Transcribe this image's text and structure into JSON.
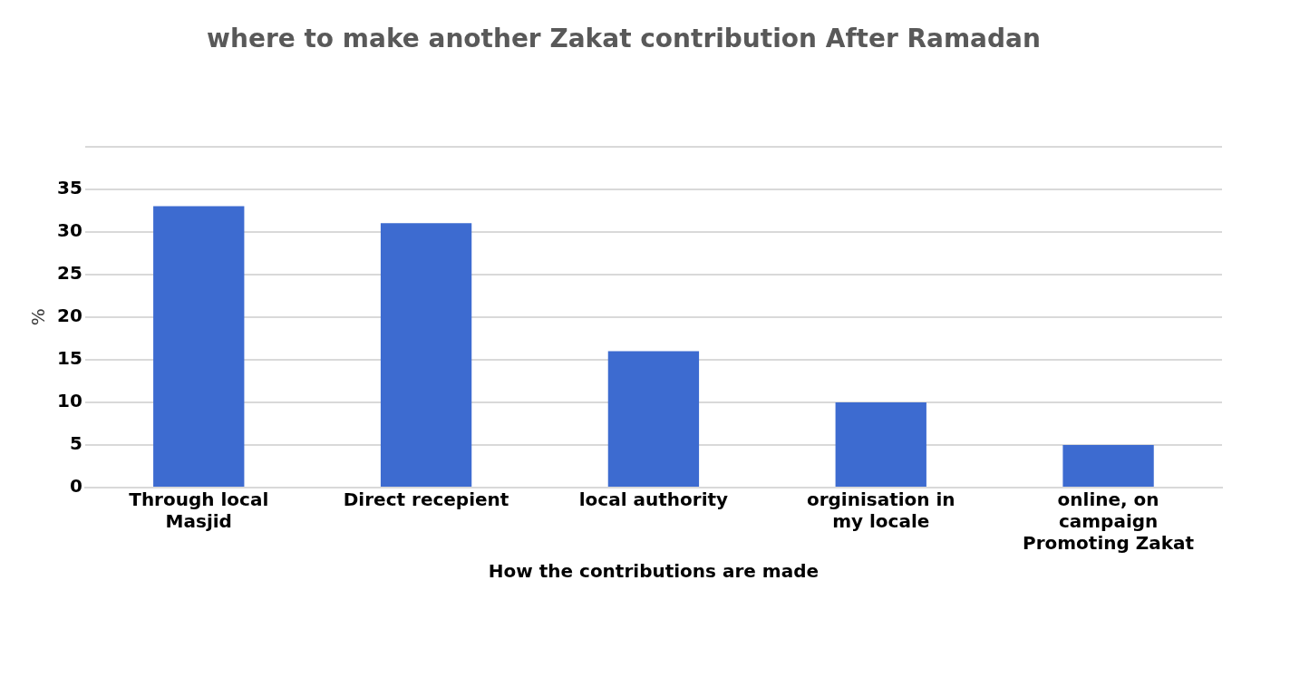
{
  "chart_data": {
    "type": "bar",
    "title": "where to make another Zakat contribution After Ramadan",
    "xlabel": "How the contributions are made",
    "ylabel": "%",
    "categories": [
      "Through local Masjid",
      "Direct recepient",
      "local authority",
      "orginisation in my locale",
      "online, on campaign Promoting Zakat"
    ],
    "values": [
      33,
      31,
      16,
      10,
      5
    ],
    "color": "#3d6bd0",
    "ylim": [
      0,
      40
    ],
    "yticks": [
      0,
      5,
      10,
      15,
      20,
      25,
      30,
      35,
      {
        "value": 40,
        "label": null
      }
    ],
    "grid": "y"
  }
}
